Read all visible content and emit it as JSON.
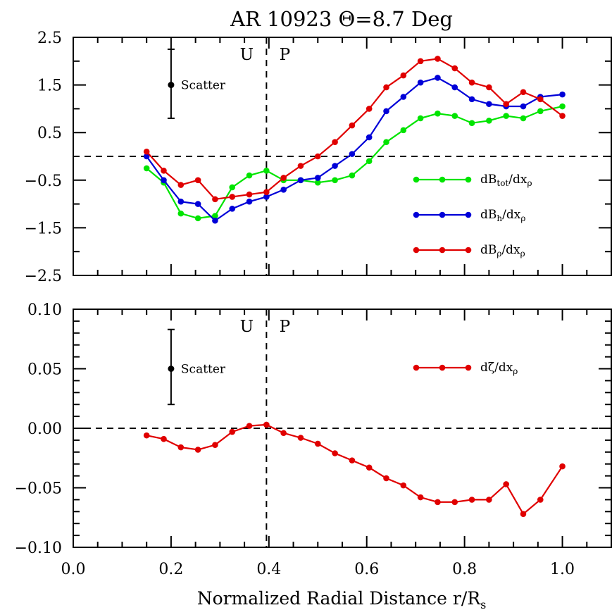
{
  "chart_data": [
    {
      "type": "line",
      "title": "AR 10923 Θ=8.7 Deg",
      "xlim": [
        0.0,
        1.1
      ],
      "ylim": [
        -2.5,
        2.5
      ],
      "ytick_values": [
        2.5,
        1.5,
        0.5,
        -0.5,
        -1.5,
        -2.5
      ],
      "ytick_labels": [
        "2.5",
        "1.5",
        "0.5",
        "−0.5",
        "−1.5",
        "−2.5"
      ],
      "yminor_values": [
        2.0,
        1.0,
        0.0,
        -1.0,
        -2.0
      ],
      "reference_line_y": 0.0,
      "reference_line_x": 0.395,
      "region_labels": {
        "left": "U",
        "right": "P"
      },
      "scatter_bar": {
        "label": "Scatter",
        "x": 0.2,
        "y": 1.5,
        "low": 0.8,
        "high": 2.25
      },
      "x": [
        0.15,
        0.185,
        0.22,
        0.255,
        0.29,
        0.325,
        0.36,
        0.395,
        0.43,
        0.465,
        0.5,
        0.535,
        0.57,
        0.605,
        0.64,
        0.675,
        0.71,
        0.745,
        0.78,
        0.815,
        0.85,
        0.885,
        0.92,
        0.955,
        1.0
      ],
      "series": [
        {
          "name": "dBtot/dxρ",
          "legend": {
            "base": "dB",
            "sub": "tot",
            "mid": "/dx",
            "sub2": "ρ"
          },
          "color": "#00e400",
          "values": [
            -0.25,
            -0.55,
            -1.2,
            -1.3,
            -1.25,
            -0.65,
            -0.4,
            -0.3,
            -0.5,
            -0.5,
            -0.55,
            -0.5,
            -0.4,
            -0.1,
            0.3,
            0.55,
            0.8,
            0.9,
            0.85,
            0.7,
            0.75,
            0.85,
            0.8,
            0.95,
            1.05
          ]
        },
        {
          "name": "dBh/dxρ",
          "legend": {
            "base": "dB",
            "sub": "h",
            "mid": "/dx",
            "sub2": "ρ"
          },
          "color": "#0000d8",
          "values": [
            0.0,
            -0.5,
            -0.95,
            -1.0,
            -1.35,
            -1.1,
            -0.95,
            -0.85,
            -0.7,
            -0.5,
            -0.45,
            -0.2,
            0.05,
            0.4,
            0.95,
            1.25,
            1.55,
            1.65,
            1.45,
            1.2,
            1.1,
            1.05,
            1.05,
            1.25,
            1.3
          ]
        },
        {
          "name": "dBρ/dxρ",
          "legend": {
            "base": "dB",
            "sub": "ρ",
            "mid": "/dx",
            "sub2": "ρ"
          },
          "color": "#e00000",
          "values": [
            0.1,
            -0.3,
            -0.6,
            -0.5,
            -0.9,
            -0.85,
            -0.8,
            -0.75,
            -0.45,
            -0.2,
            0.0,
            0.3,
            0.65,
            1.0,
            1.45,
            1.7,
            2.0,
            2.05,
            1.85,
            1.55,
            1.45,
            1.1,
            1.35,
            1.2,
            0.85
          ]
        }
      ]
    },
    {
      "type": "line",
      "xlabel": "Normalized Radial Distance r/Rs",
      "xlabel_parts": {
        "main": "Normalized Radial Distance r/R",
        "sub": "s"
      },
      "xlim": [
        0.0,
        1.1
      ],
      "xtick_values": [
        0.0,
        0.2,
        0.4,
        0.6,
        0.8,
        1.0
      ],
      "xtick_labels": [
        "0.0",
        "0.2",
        "0.4",
        "0.6",
        "0.8",
        "1.0"
      ],
      "ylim": [
        -0.1,
        0.1
      ],
      "ytick_values": [
        0.1,
        0.05,
        0.0,
        -0.05,
        -0.1
      ],
      "ytick_labels": [
        "0.10",
        "0.05",
        "0.00",
        "−0.05",
        "−0.10"
      ],
      "reference_line_y": 0.0,
      "reference_line_x": 0.395,
      "region_labels": {
        "left": "U",
        "right": "P"
      },
      "scatter_bar": {
        "label": "Scatter",
        "x": 0.2,
        "y": 0.05,
        "low": 0.02,
        "high": 0.083
      },
      "x": [
        0.15,
        0.185,
        0.22,
        0.255,
        0.29,
        0.325,
        0.36,
        0.395,
        0.43,
        0.465,
        0.5,
        0.535,
        0.57,
        0.605,
        0.64,
        0.675,
        0.71,
        0.745,
        0.78,
        0.815,
        0.85,
        0.885,
        0.92,
        0.955,
        1.0
      ],
      "series": [
        {
          "name": "dζ/dxρ",
          "legend": {
            "base": "dζ/dx",
            "sub": "",
            "mid": "",
            "sub2": "ρ"
          },
          "color": "#e00000",
          "values": [
            -0.006,
            -0.009,
            -0.016,
            -0.018,
            -0.014,
            -0.003,
            0.002,
            0.003,
            -0.004,
            -0.008,
            -0.013,
            -0.021,
            -0.027,
            -0.033,
            -0.042,
            -0.048,
            -0.058,
            -0.062,
            -0.062,
            -0.06,
            -0.06,
            -0.047,
            -0.072,
            -0.06,
            -0.032
          ]
        }
      ]
    }
  ]
}
